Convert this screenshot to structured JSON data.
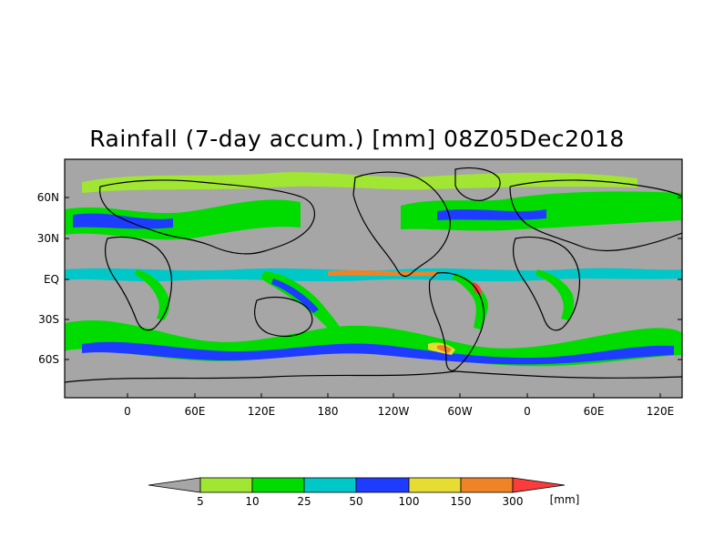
{
  "title": "Rainfall (7-day accum.) [mm] 08Z05Dec2018",
  "colors": {
    "land_ocean_background": "#a6a6a6",
    "coastline": "#000000",
    "scale": [
      "#a6a6a6",
      "#a0e632",
      "#00dc00",
      "#00c8c8",
      "#1e3cff",
      "#e6dc32",
      "#f08228",
      "#fa3c3c"
    ]
  },
  "map": {
    "y_ticks": [
      "60N",
      "30N",
      "EQ",
      "30S",
      "60S"
    ],
    "x_ticks": [
      "0",
      "60E",
      "120E",
      "180",
      "120W",
      "60W",
      "0",
      "60E",
      "120E"
    ]
  },
  "colorbar": {
    "labels": [
      "5",
      "10",
      "25",
      "50",
      "100",
      "150",
      "300"
    ],
    "unit": "[mm]"
  }
}
